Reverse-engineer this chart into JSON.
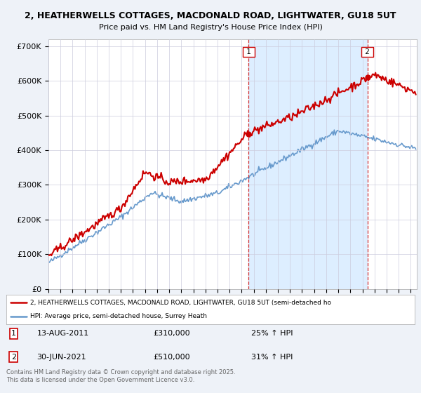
{
  "title_line1": "2, HEATHERWELLS COTTAGES, MACDONALD ROAD, LIGHTWATER, GU18 5UT",
  "title_line2": "Price paid vs. HM Land Registry's House Price Index (HPI)",
  "ylim": [
    0,
    720000
  ],
  "yticks": [
    0,
    100000,
    200000,
    300000,
    400000,
    500000,
    600000,
    700000
  ],
  "ytick_labels": [
    "£0",
    "£100K",
    "£200K",
    "£300K",
    "£400K",
    "£500K",
    "£600K",
    "£700K"
  ],
  "price_paid_color": "#cc0000",
  "hpi_color": "#6699cc",
  "shade_color": "#ddeeff",
  "marker1_x": 2011.583,
  "marker1_price": 310000,
  "marker2_x": 2021.417,
  "marker2_price": 510000,
  "legend_line1": "2, HEATHERWELLS COTTAGES, MACDONALD ROAD, LIGHTWATER, GU18 5UT (semi-detached ho",
  "legend_line2": "HPI: Average price, semi-detached house, Surrey Heath",
  "annotation1_date": "13-AUG-2011",
  "annotation1_price": "£310,000",
  "annotation1_hpi": "25% ↑ HPI",
  "annotation2_date": "30-JUN-2021",
  "annotation2_price": "£510,000",
  "annotation2_hpi": "31% ↑ HPI",
  "footer": "Contains HM Land Registry data © Crown copyright and database right 2025.\nThis data is licensed under the Open Government Licence v3.0.",
  "background_color": "#eef2f8",
  "plot_background": "#ffffff",
  "grid_color": "#ccccdd",
  "xmin": 1995,
  "xmax": 2025.5
}
